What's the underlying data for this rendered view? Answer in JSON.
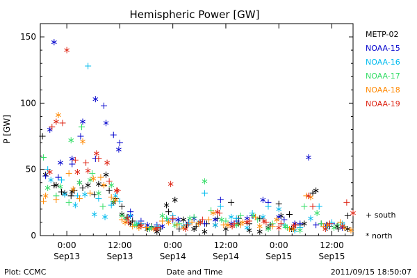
{
  "chart_data": {
    "type": "scatter",
    "title": "Hemispheric Power [GW]",
    "ylabel": "P [GW]",
    "xlabel": "Date and Time",
    "ylim": [
      0,
      160
    ],
    "xlim": [
      -0.25,
      2.7
    ],
    "yticks": [
      0,
      50,
      100,
      150
    ],
    "xticks": [
      {
        "x": 0.0,
        "time": "0:00",
        "date": "Sep13"
      },
      {
        "x": 0.5,
        "time": "12:00",
        "date": "Sep13"
      },
      {
        "x": 1.0,
        "time": "0:00",
        "date": "Sep14"
      },
      {
        "x": 1.5,
        "time": "12:00",
        "date": "Sep14"
      },
      {
        "x": 2.0,
        "time": "0:00",
        "date": "Sep15"
      },
      {
        "x": 2.5,
        "time": "12:00",
        "date": "Sep15"
      }
    ],
    "x_units": "days since Sep13 0:00",
    "legend_position": "right",
    "marker_legend": {
      "south": "+ south",
      "north": "* north"
    },
    "series": [
      {
        "name": "METP-02",
        "color": "#000000",
        "south": [
          [
            -0.23,
            75
          ],
          [
            -0.12,
            38
          ],
          [
            -0.05,
            33
          ],
          [
            0.04,
            30
          ],
          [
            0.07,
            34
          ],
          [
            0.15,
            36
          ],
          [
            0.26,
            31
          ],
          [
            0.35,
            38
          ],
          [
            0.4,
            34
          ],
          [
            0.46,
            28
          ],
          [
            0.52,
            22
          ],
          [
            0.57,
            14
          ],
          [
            0.62,
            11
          ],
          [
            0.7,
            9
          ],
          [
            0.8,
            7
          ],
          [
            0.88,
            5
          ],
          [
            0.96,
            18
          ],
          [
            1.06,
            5
          ],
          [
            1.13,
            8
          ],
          [
            1.22,
            7
          ],
          [
            1.32,
            9
          ],
          [
            1.42,
            13
          ],
          [
            1.55,
            25
          ],
          [
            1.62,
            13
          ],
          [
            1.72,
            9
          ],
          [
            1.82,
            13
          ],
          [
            1.92,
            8
          ],
          [
            2.0,
            24
          ],
          [
            2.1,
            16
          ],
          [
            2.2,
            8
          ],
          [
            2.32,
            32
          ],
          [
            2.4,
            9
          ],
          [
            2.48,
            7
          ],
          [
            2.56,
            5
          ],
          [
            2.65,
            15
          ]
        ],
        "north": [
          [
            -0.2,
            46
          ],
          [
            -0.1,
            38
          ],
          [
            -0.02,
            32
          ],
          [
            0.05,
            33
          ],
          [
            0.12,
            40
          ],
          [
            0.2,
            38
          ],
          [
            0.3,
            39
          ],
          [
            0.37,
            46
          ],
          [
            0.44,
            25
          ],
          [
            0.52,
            16
          ],
          [
            0.6,
            9
          ],
          [
            0.68,
            8
          ],
          [
            0.76,
            5
          ],
          [
            0.85,
            3
          ],
          [
            0.94,
            23
          ],
          [
            1.02,
            27
          ],
          [
            1.1,
            12
          ],
          [
            1.2,
            5
          ],
          [
            1.3,
            3
          ],
          [
            1.4,
            8
          ],
          [
            1.5,
            5
          ],
          [
            1.62,
            9
          ],
          [
            1.72,
            4
          ],
          [
            1.82,
            3
          ],
          [
            1.9,
            6
          ],
          [
            2.02,
            15
          ],
          [
            2.12,
            5
          ],
          [
            2.24,
            9
          ],
          [
            2.35,
            34
          ],
          [
            2.45,
            8
          ],
          [
            2.55,
            7
          ],
          [
            2.65,
            5
          ]
        ]
      },
      {
        "name": "NOAA-15",
        "color": "#0000cc",
        "south": [
          [
            -0.2,
            45
          ],
          [
            -0.08,
            44
          ],
          [
            0.05,
            54
          ],
          [
            0.13,
            75
          ],
          [
            0.27,
            58
          ],
          [
            0.35,
            98
          ],
          [
            0.44,
            76
          ],
          [
            0.5,
            70
          ],
          [
            0.6,
            18
          ],
          [
            0.7,
            11
          ],
          [
            0.85,
            8
          ],
          [
            1.0,
            12
          ],
          [
            1.15,
            10
          ],
          [
            1.3,
            9
          ],
          [
            1.45,
            27
          ],
          [
            1.6,
            11
          ],
          [
            1.75,
            15
          ],
          [
            1.9,
            25
          ],
          [
            2.05,
            12
          ],
          [
            2.2,
            9
          ],
          [
            2.35,
            8
          ],
          [
            2.5,
            9
          ]
        ],
        "north": [
          [
            -0.16,
            80
          ],
          [
            -0.12,
            146
          ],
          [
            -0.06,
            55
          ],
          [
            0.05,
            58
          ],
          [
            0.15,
            86
          ],
          [
            0.27,
            103
          ],
          [
            0.37,
            85
          ],
          [
            0.49,
            65
          ],
          [
            0.6,
            15
          ],
          [
            0.76,
            8
          ],
          [
            0.9,
            7
          ],
          [
            1.05,
            12
          ],
          [
            1.2,
            13
          ],
          [
            1.4,
            12
          ],
          [
            1.55,
            9
          ],
          [
            1.7,
            13
          ],
          [
            1.85,
            27
          ],
          [
            2.0,
            14
          ],
          [
            2.15,
            9
          ],
          [
            2.28,
            59
          ],
          [
            2.45,
            8
          ],
          [
            2.6,
            6
          ]
        ]
      },
      {
        "name": "NOAA-16",
        "color": "#00bbee",
        "south": [
          [
            -0.18,
            50
          ],
          [
            -0.05,
            42
          ],
          [
            0.1,
            30
          ],
          [
            0.2,
            128
          ],
          [
            0.3,
            28
          ],
          [
            0.42,
            23
          ],
          [
            0.5,
            26
          ],
          [
            0.6,
            15
          ],
          [
            0.7,
            9
          ],
          [
            0.85,
            7
          ],
          [
            1.0,
            15
          ],
          [
            1.15,
            9
          ],
          [
            1.3,
            32
          ],
          [
            1.45,
            22
          ],
          [
            1.6,
            13
          ],
          [
            1.75,
            17
          ],
          [
            1.9,
            22
          ],
          [
            2.05,
            8
          ],
          [
            2.2,
            6
          ],
          [
            2.38,
            22
          ],
          [
            2.5,
            10
          ],
          [
            2.62,
            7
          ]
        ],
        "north": [
          [
            -0.15,
            42
          ],
          [
            -0.02,
            31
          ],
          [
            0.08,
            23
          ],
          [
            0.17,
            31
          ],
          [
            0.26,
            16
          ],
          [
            0.36,
            14
          ],
          [
            0.46,
            30
          ],
          [
            0.56,
            13
          ],
          [
            0.66,
            9
          ],
          [
            0.8,
            6
          ],
          [
            0.95,
            12
          ],
          [
            1.1,
            7
          ],
          [
            1.25,
            10
          ],
          [
            1.4,
            8
          ],
          [
            1.55,
            14
          ],
          [
            1.7,
            6
          ],
          [
            1.85,
            14
          ],
          [
            2.0,
            20
          ],
          [
            2.15,
            4
          ],
          [
            2.3,
            13
          ],
          [
            2.45,
            6
          ],
          [
            2.6,
            9
          ]
        ]
      },
      {
        "name": "NOAA-17",
        "color": "#33dd66",
        "south": [
          [
            -0.22,
            59
          ],
          [
            -0.1,
            30
          ],
          [
            0.02,
            25
          ],
          [
            0.14,
            82
          ],
          [
            0.24,
            47
          ],
          [
            0.34,
            22
          ],
          [
            0.44,
            26
          ],
          [
            0.56,
            13
          ],
          [
            0.66,
            8
          ],
          [
            0.8,
            6
          ],
          [
            0.94,
            13
          ],
          [
            1.06,
            9
          ],
          [
            1.2,
            14
          ],
          [
            1.36,
            19
          ],
          [
            1.5,
            11
          ],
          [
            1.64,
            15
          ],
          [
            1.8,
            12
          ],
          [
            1.94,
            9
          ],
          [
            2.08,
            6
          ],
          [
            2.24,
            22
          ],
          [
            2.4,
            9
          ],
          [
            2.56,
            8
          ]
        ],
        "north": [
          [
            -0.18,
            36
          ],
          [
            -0.06,
            37
          ],
          [
            0.04,
            72
          ],
          [
            0.12,
            40
          ],
          [
            0.22,
            42
          ],
          [
            0.3,
            32
          ],
          [
            0.42,
            38
          ],
          [
            0.52,
            15
          ],
          [
            0.64,
            8
          ],
          [
            0.78,
            5
          ],
          [
            0.9,
            15
          ],
          [
            1.02,
            8
          ],
          [
            1.16,
            13
          ],
          [
            1.3,
            41
          ],
          [
            1.46,
            12
          ],
          [
            1.6,
            8
          ],
          [
            1.76,
            15
          ],
          [
            1.9,
            5
          ],
          [
            2.06,
            7
          ],
          [
            2.2,
            4
          ],
          [
            2.36,
            17
          ],
          [
            2.52,
            6
          ]
        ]
      },
      {
        "name": "NOAA-18",
        "color": "#ff8800",
        "south": [
          [
            -0.22,
            26
          ],
          [
            -0.1,
            27
          ],
          [
            0.02,
            47
          ],
          [
            0.12,
            28
          ],
          [
            0.22,
            32
          ],
          [
            0.32,
            44
          ],
          [
            0.42,
            29
          ],
          [
            0.52,
            12
          ],
          [
            0.62,
            7
          ],
          [
            0.75,
            6
          ],
          [
            0.9,
            11
          ],
          [
            1.04,
            8
          ],
          [
            1.18,
            10
          ],
          [
            1.34,
            12
          ],
          [
            1.48,
            8
          ],
          [
            1.64,
            8
          ],
          [
            1.78,
            14
          ],
          [
            1.94,
            7
          ],
          [
            2.1,
            5
          ],
          [
            2.26,
            30
          ],
          [
            2.42,
            7
          ],
          [
            2.58,
            10
          ]
        ],
        "north": [
          [
            -0.2,
            30
          ],
          [
            -0.08,
            91
          ],
          [
            0.06,
            35
          ],
          [
            0.15,
            71
          ],
          [
            0.25,
            43
          ],
          [
            0.35,
            38
          ],
          [
            0.46,
            27
          ],
          [
            0.55,
            10
          ],
          [
            0.68,
            6
          ],
          [
            0.82,
            5
          ],
          [
            0.96,
            10
          ],
          [
            1.1,
            6
          ],
          [
            1.24,
            9
          ],
          [
            1.38,
            17
          ],
          [
            1.52,
            8
          ],
          [
            1.66,
            10
          ],
          [
            1.82,
            7
          ],
          [
            1.98,
            12
          ],
          [
            2.14,
            5
          ],
          [
            2.3,
            29
          ],
          [
            2.46,
            8
          ],
          [
            2.62,
            6
          ],
          [
            2.68,
            4
          ]
        ]
      },
      {
        "name": "NOAA-19",
        "color": "#dd2211",
        "south": [
          [
            -0.14,
            82
          ],
          [
            -0.04,
            85
          ],
          [
            0.08,
            57
          ],
          [
            0.18,
            55
          ],
          [
            0.3,
            58
          ],
          [
            0.4,
            41
          ],
          [
            0.48,
            34
          ],
          [
            0.58,
            10
          ],
          [
            0.7,
            8
          ],
          [
            0.86,
            6
          ],
          [
            1.0,
            13
          ],
          [
            1.14,
            8
          ],
          [
            1.28,
            12
          ],
          [
            1.44,
            17
          ],
          [
            1.58,
            9
          ],
          [
            1.72,
            11
          ],
          [
            1.88,
            10
          ],
          [
            2.02,
            9
          ],
          [
            2.16,
            8
          ],
          [
            2.32,
            22
          ],
          [
            2.48,
            9
          ],
          [
            2.64,
            25
          ]
        ],
        "north": [
          [
            -0.16,
            48
          ],
          [
            -0.1,
            86
          ],
          [
            0.0,
            140
          ],
          [
            0.1,
            48
          ],
          [
            0.2,
            49
          ],
          [
            0.28,
            62
          ],
          [
            0.38,
            55
          ],
          [
            0.47,
            34
          ],
          [
            0.57,
            13
          ],
          [
            0.7,
            7
          ],
          [
            0.84,
            5
          ],
          [
            0.98,
            39
          ],
          [
            1.12,
            5
          ],
          [
            1.26,
            10
          ],
          [
            1.42,
            18
          ],
          [
            1.56,
            7
          ],
          [
            1.7,
            10
          ],
          [
            1.86,
            11
          ],
          [
            2.0,
            6
          ],
          [
            2.14,
            7
          ],
          [
            2.28,
            30
          ],
          [
            2.44,
            5
          ],
          [
            2.6,
            7
          ],
          [
            2.7,
            17
          ]
        ]
      }
    ]
  },
  "footer": {
    "plot_credit": "Plot: CCMC",
    "timestamp": "2011/09/15  18:50:07"
  }
}
